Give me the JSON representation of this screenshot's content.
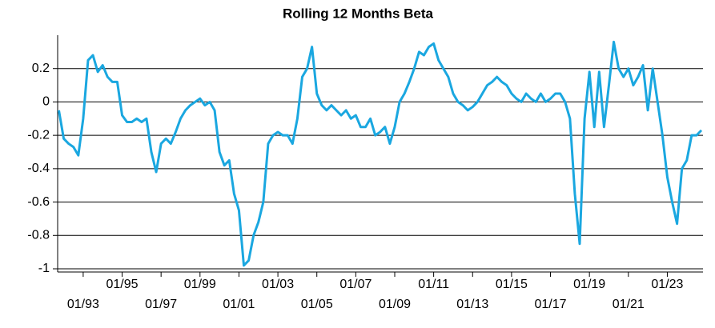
{
  "chart_data": {
    "type": "line",
    "title": "Rolling 12 Months Beta",
    "x": [
      "10/91",
      "01/92",
      "04/92",
      "07/92",
      "10/92",
      "01/93",
      "04/93",
      "07/93",
      "10/93",
      "01/94",
      "04/94",
      "07/94",
      "10/94",
      "01/95",
      "04/95",
      "07/95",
      "10/95",
      "01/96",
      "04/96",
      "07/96",
      "10/96",
      "01/97",
      "04/97",
      "07/97",
      "10/97",
      "01/98",
      "04/98",
      "07/98",
      "10/98",
      "01/99",
      "04/99",
      "07/99",
      "10/99",
      "01/00",
      "04/00",
      "07/00",
      "10/00",
      "01/01",
      "04/01",
      "07/01",
      "10/01",
      "01/02",
      "04/02",
      "07/02",
      "10/02",
      "01/03",
      "04/03",
      "07/03",
      "10/03",
      "01/04",
      "04/04",
      "07/04",
      "10/04",
      "01/05",
      "04/05",
      "07/05",
      "10/05",
      "01/06",
      "04/06",
      "07/06",
      "10/06",
      "01/07",
      "04/07",
      "07/07",
      "10/07",
      "01/08",
      "04/08",
      "07/08",
      "10/08",
      "01/09",
      "04/09",
      "07/09",
      "10/09",
      "01/10",
      "04/10",
      "07/10",
      "10/10",
      "01/11",
      "04/11",
      "07/11",
      "10/11",
      "01/12",
      "04/12",
      "07/12",
      "10/12",
      "01/13",
      "04/13",
      "07/13",
      "10/13",
      "01/14",
      "04/14",
      "07/14",
      "10/14",
      "01/15",
      "04/15",
      "07/15",
      "10/15",
      "01/16",
      "04/16",
      "07/16",
      "10/16",
      "01/17",
      "04/17",
      "07/17",
      "10/17",
      "01/18",
      "04/18",
      "07/18",
      "10/18",
      "01/19",
      "04/19",
      "07/19",
      "10/19",
      "01/20",
      "04/20",
      "07/20",
      "10/20",
      "01/21",
      "04/21",
      "07/21",
      "10/21",
      "01/22",
      "04/22",
      "07/22",
      "10/22",
      "01/23",
      "04/23",
      "07/23",
      "10/23",
      "01/24",
      "04/24",
      "07/24",
      "10/24"
    ],
    "series": [
      {
        "name": "Beta",
        "color": "#1aa7e0",
        "values": [
          -0.05,
          -0.22,
          -0.25,
          -0.27,
          -0.32,
          -0.1,
          0.25,
          0.28,
          0.18,
          0.22,
          0.15,
          0.12,
          0.12,
          -0.08,
          -0.12,
          -0.12,
          -0.1,
          -0.12,
          -0.1,
          -0.3,
          -0.42,
          -0.25,
          -0.22,
          -0.25,
          -0.18,
          -0.1,
          -0.05,
          -0.02,
          0.0,
          0.02,
          -0.02,
          0.0,
          -0.05,
          -0.3,
          -0.38,
          -0.35,
          -0.55,
          -0.65,
          -0.98,
          -0.95,
          -0.8,
          -0.72,
          -0.6,
          -0.25,
          -0.2,
          -0.18,
          -0.2,
          -0.2,
          -0.25,
          -0.1,
          0.15,
          0.2,
          0.33,
          0.05,
          -0.02,
          -0.05,
          -0.02,
          -0.05,
          -0.08,
          -0.05,
          -0.1,
          -0.08,
          -0.15,
          -0.15,
          -0.1,
          -0.2,
          -0.18,
          -0.15,
          -0.25,
          -0.15,
          0.0,
          0.05,
          0.12,
          0.2,
          0.3,
          0.28,
          0.33,
          0.35,
          0.25,
          0.2,
          0.15,
          0.05,
          0.0,
          -0.02,
          -0.05,
          -0.03,
          0.0,
          0.05,
          0.1,
          0.12,
          0.15,
          0.12,
          0.1,
          0.05,
          0.02,
          0.0,
          0.05,
          0.02,
          0.0,
          0.05,
          0.0,
          0.02,
          0.05,
          0.05,
          0.0,
          -0.1,
          -0.55,
          -0.85,
          -0.1,
          0.18,
          -0.15,
          0.18,
          -0.15,
          0.1,
          0.36,
          0.2,
          0.15,
          0.2,
          0.1,
          0.15,
          0.22,
          -0.05,
          0.2,
          0.0,
          -0.2,
          -0.45,
          -0.6,
          -0.73,
          -0.4,
          -0.35,
          -0.2,
          -0.2,
          -0.17
        ]
      }
    ],
    "xticks": [
      "01/93",
      "01/95",
      "01/97",
      "01/99",
      "01/01",
      "01/03",
      "01/05",
      "01/07",
      "01/09",
      "01/11",
      "01/13",
      "01/15",
      "01/17",
      "01/19",
      "01/21",
      "01/23"
    ],
    "ylim": [
      -1,
      0.4
    ],
    "yticks": [
      0.2,
      0,
      -0.2,
      -0.4,
      -0.6,
      -0.8,
      -1
    ],
    "grid": true
  }
}
